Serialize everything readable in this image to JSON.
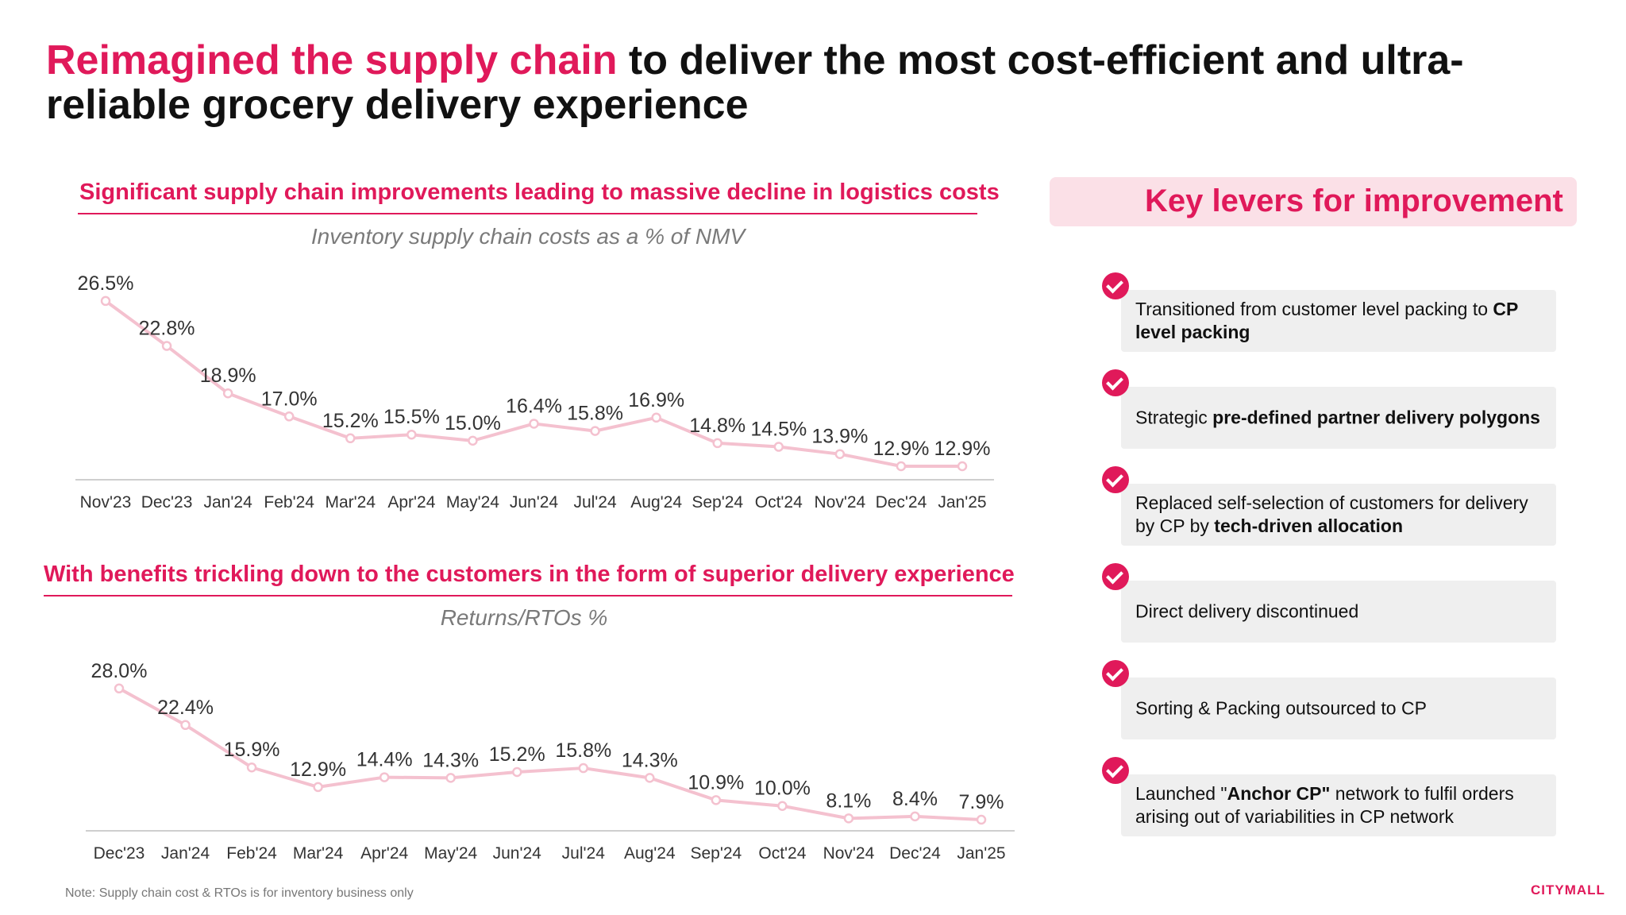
{
  "title": {
    "accent": "Reimagined the supply chain",
    "rest": " to deliver the most cost-efficient and ultra-reliable grocery delivery experience"
  },
  "section1": {
    "heading": "Significant supply chain improvements leading to massive decline in logistics costs"
  },
  "section2": {
    "heading": "With benefits trickling down to the customers in the form of superior delivery experience"
  },
  "colors": {
    "accent": "#e0195a",
    "line": "#f4c1cf",
    "panel": "#fbe0e7",
    "lever_bg": "#efefef"
  },
  "chart_data": [
    {
      "type": "line",
      "title": "Inventory supply chain costs as a % of NMV",
      "categories": [
        "Nov'23",
        "Dec'23",
        "Jan'24",
        "Feb'24",
        "Mar'24",
        "Apr'24",
        "May'24",
        "Jun'24",
        "Jul'24",
        "Aug'24",
        "Sep'24",
        "Oct'24",
        "Nov'24",
        "Dec'24",
        "Jan'25"
      ],
      "values": [
        26.5,
        22.8,
        18.9,
        17.0,
        15.2,
        15.5,
        15.0,
        16.4,
        15.8,
        16.9,
        14.8,
        14.5,
        13.9,
        12.9,
        12.9
      ],
      "labels": [
        "26.5%",
        "22.8%",
        "18.9%",
        "17.0%",
        "15.2%",
        "15.5%",
        "15.0%",
        "16.4%",
        "15.8%",
        "16.9%",
        "14.8%",
        "14.5%",
        "13.9%",
        "12.9%",
        "12.9%"
      ],
      "grid": false,
      "legend": "none"
    },
    {
      "type": "line",
      "title": "Returns/RTOs %",
      "categories": [
        "Dec'23",
        "Jan'24",
        "Feb'24",
        "Mar'24",
        "Apr'24",
        "May'24",
        "Jun'24",
        "Jul'24",
        "Aug'24",
        "Sep'24",
        "Oct'24",
        "Nov'24",
        "Dec'24",
        "Jan'25"
      ],
      "values": [
        28.0,
        22.4,
        15.9,
        12.9,
        14.4,
        14.3,
        15.2,
        15.8,
        14.3,
        10.9,
        10.0,
        8.1,
        8.4,
        7.9
      ],
      "labels": [
        "28.0%",
        "22.4%",
        "15.9%",
        "12.9%",
        "14.4%",
        "14.3%",
        "15.2%",
        "15.8%",
        "14.3%",
        "10.9%",
        "10.0%",
        "8.1%",
        "8.4%",
        "7.9%"
      ],
      "grid": false,
      "legend": "none"
    }
  ],
  "key_levers": {
    "heading": "Key levers for improvement",
    "items": [
      {
        "parts": [
          {
            "t": "Transitioned from customer level packing to ",
            "b": false
          },
          {
            "t": "CP level packing",
            "b": true
          }
        ]
      },
      {
        "parts": [
          {
            "t": "Strategic ",
            "b": false
          },
          {
            "t": "pre-defined partner delivery polygons",
            "b": true
          }
        ]
      },
      {
        "parts": [
          {
            "t": "Replaced self-selection of customers for delivery by CP by ",
            "b": false
          },
          {
            "t": "tech-driven allocation",
            "b": true
          }
        ]
      },
      {
        "parts": [
          {
            "t": "Direct delivery discontinued",
            "b": false
          }
        ]
      },
      {
        "parts": [
          {
            "t": "Sorting & Packing outsourced to CP",
            "b": false
          }
        ]
      },
      {
        "parts": [
          {
            "t": "Launched \"",
            "b": false
          },
          {
            "t": "Anchor CP\"",
            "b": true
          },
          {
            "t": " network to fulfil orders arising out of variabilities in CP network",
            "b": false
          }
        ]
      }
    ]
  },
  "footer": {
    "note": "Note: Supply chain cost & RTOs is for inventory business only",
    "logo": "CITYMALL"
  }
}
